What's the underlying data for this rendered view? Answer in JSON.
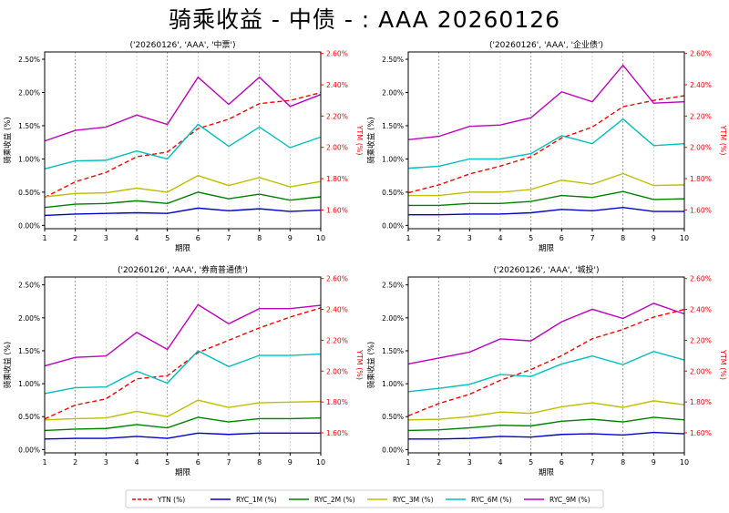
{
  "title": "骑乘收益 - 中债 - : AAA 20260126",
  "colors": {
    "YTN (%)": "#ff0000",
    "RYC_1M (%)": "#0000cc",
    "RYC_2M (%)": "#008000",
    "RYC_3M (%)": "#bfbf00",
    "RYC_6M (%)": "#00bfbf",
    "RYC_9M (%)": "#bf00bf"
  },
  "legend": [
    "YTN (%)",
    "RYC_1M (%)",
    "RYC_2M (%)",
    "RYC_3M (%)",
    "RYC_6M (%)",
    "RYC_9M (%)"
  ],
  "chart_data": [
    {
      "type": "line",
      "title": "('20260126', 'AAA', '中票')",
      "xlabel": "期限",
      "ylabel": "骑乘收益 (%)",
      "y2label": "YTM (%)",
      "x": [
        1,
        2,
        3,
        4,
        5,
        6,
        7,
        8,
        9,
        10
      ],
      "xticks": [
        "1",
        "2",
        "3",
        "4",
        "5",
        "6",
        "7",
        "8",
        "9",
        "10"
      ],
      "yticks": [
        "0.00%",
        "0.50%",
        "1.00%",
        "1.50%",
        "2.00%",
        "2.50%"
      ],
      "y2ticks": [
        "1.60%",
        "1.80%",
        "2.00%",
        "2.20%",
        "2.40%",
        "2.60%"
      ],
      "ylim": [
        -0.05,
        2.61
      ],
      "y2lim": [
        1.48,
        2.61
      ],
      "grid": "vertical",
      "series": [
        {
          "name": "YTN (%)",
          "axis": "right",
          "values": [
            1.68,
            1.78,
            1.84,
            1.94,
            1.97,
            2.12,
            2.18,
            2.28,
            2.3,
            2.35
          ]
        },
        {
          "name": "RYC_1M (%)",
          "values": [
            0.15,
            0.17,
            0.18,
            0.19,
            0.18,
            0.26,
            0.22,
            0.25,
            0.21,
            0.23
          ]
        },
        {
          "name": "RYC_2M (%)",
          "values": [
            0.27,
            0.32,
            0.33,
            0.37,
            0.33,
            0.5,
            0.4,
            0.47,
            0.38,
            0.43
          ]
        },
        {
          "name": "RYC_3M (%)",
          "values": [
            0.43,
            0.48,
            0.49,
            0.56,
            0.5,
            0.75,
            0.6,
            0.72,
            0.58,
            0.66
          ]
        },
        {
          "name": "RYC_6M (%)",
          "values": [
            0.85,
            0.97,
            0.98,
            1.12,
            1.0,
            1.52,
            1.19,
            1.48,
            1.17,
            1.33
          ]
        },
        {
          "name": "RYC_9M (%)",
          "values": [
            1.27,
            1.43,
            1.48,
            1.66,
            1.52,
            2.23,
            1.82,
            2.23,
            1.79,
            1.97
          ]
        }
      ]
    },
    {
      "type": "line",
      "title": "('20260126', 'AAA', '企业债')",
      "xlabel": "期限",
      "ylabel": "骑乘收益 (%)",
      "y2label": "YTM (%)",
      "x": [
        1,
        2,
        3,
        4,
        5,
        6,
        7,
        8,
        9,
        10
      ],
      "xticks": [
        "1",
        "2",
        "3",
        "4",
        "5",
        "6",
        "7",
        "8",
        "9",
        "10"
      ],
      "yticks": [
        "0.00%",
        "0.50%",
        "1.00%",
        "1.50%",
        "2.00%",
        "2.50%"
      ],
      "y2ticks": [
        "1.60%",
        "1.80%",
        "2.00%",
        "2.20%",
        "2.40%",
        "2.60%"
      ],
      "ylim": [
        -0.05,
        2.61
      ],
      "y2lim": [
        1.48,
        2.61
      ],
      "grid": "vertical",
      "series": [
        {
          "name": "YTN (%)",
          "axis": "right",
          "values": [
            1.71,
            1.76,
            1.83,
            1.88,
            1.94,
            2.06,
            2.13,
            2.26,
            2.3,
            2.33
          ]
        },
        {
          "name": "RYC_1M (%)",
          "values": [
            0.16,
            0.16,
            0.17,
            0.17,
            0.19,
            0.24,
            0.22,
            0.27,
            0.21,
            0.21
          ]
        },
        {
          "name": "RYC_2M (%)",
          "values": [
            0.3,
            0.3,
            0.33,
            0.33,
            0.36,
            0.45,
            0.42,
            0.51,
            0.39,
            0.4
          ]
        },
        {
          "name": "RYC_3M (%)",
          "values": [
            0.45,
            0.45,
            0.5,
            0.5,
            0.54,
            0.68,
            0.62,
            0.78,
            0.6,
            0.61
          ]
        },
        {
          "name": "RYC_6M (%)",
          "values": [
            0.86,
            0.89,
            1.0,
            1.0,
            1.08,
            1.35,
            1.23,
            1.6,
            1.2,
            1.23
          ]
        },
        {
          "name": "RYC_9M (%)",
          "values": [
            1.29,
            1.34,
            1.49,
            1.51,
            1.62,
            2.01,
            1.86,
            2.41,
            1.84,
            1.86
          ]
        }
      ]
    },
    {
      "type": "line",
      "title": "('20260126', 'AAA', '券商普通债')",
      "xlabel": "期限",
      "ylabel": "骑乘收益 (%)",
      "y2label": "YTM (%)",
      "x": [
        1,
        2,
        3,
        4,
        5,
        6,
        7,
        8,
        9,
        10
      ],
      "xticks": [
        "1",
        "2",
        "3",
        "4",
        "5",
        "6",
        "7",
        "8",
        "9",
        "10"
      ],
      "yticks": [
        "0.00%",
        "0.50%",
        "1.00%",
        "1.50%",
        "2.00%",
        "2.50%"
      ],
      "y2ticks": [
        "1.60%",
        "1.80%",
        "2.00%",
        "2.20%",
        "2.40%",
        "2.60%"
      ],
      "ylim": [
        -0.05,
        2.62
      ],
      "y2lim": [
        1.47,
        2.61
      ],
      "grid": "vertical",
      "series": [
        {
          "name": "YTN (%)",
          "axis": "right",
          "values": [
            1.69,
            1.78,
            1.82,
            1.95,
            1.97,
            2.12,
            2.2,
            2.28,
            2.35,
            2.41
          ]
        },
        {
          "name": "RYC_1M (%)",
          "values": [
            0.16,
            0.17,
            0.17,
            0.2,
            0.17,
            0.25,
            0.23,
            0.25,
            0.25,
            0.25
          ]
        },
        {
          "name": "RYC_2M (%)",
          "values": [
            0.29,
            0.31,
            0.32,
            0.38,
            0.33,
            0.49,
            0.42,
            0.47,
            0.47,
            0.48
          ]
        },
        {
          "name": "RYC_3M (%)",
          "values": [
            0.45,
            0.47,
            0.48,
            0.58,
            0.5,
            0.75,
            0.64,
            0.71,
            0.72,
            0.73
          ]
        },
        {
          "name": "RYC_6M (%)",
          "values": [
            0.85,
            0.94,
            0.95,
            1.19,
            1.01,
            1.5,
            1.26,
            1.43,
            1.43,
            1.45
          ]
        },
        {
          "name": "RYC_9M (%)",
          "values": [
            1.27,
            1.4,
            1.42,
            1.78,
            1.52,
            2.2,
            1.91,
            2.14,
            2.14,
            2.19
          ]
        }
      ]
    },
    {
      "type": "line",
      "title": "('20260126', 'AAA', '城投')",
      "xlabel": "期限",
      "ylabel": "骑乘收益 (%)",
      "y2label": "YTM (%)",
      "x": [
        1,
        2,
        3,
        4,
        5,
        6,
        7,
        8,
        9,
        10
      ],
      "xticks": [
        "1",
        "2",
        "3",
        "4",
        "5",
        "6",
        "7",
        "8",
        "9",
        "10"
      ],
      "yticks": [
        "0.00%",
        "0.50%",
        "1.00%",
        "1.50%",
        "2.00%",
        "2.50%"
      ],
      "y2ticks": [
        "1.60%",
        "1.80%",
        "2.00%",
        "2.20%",
        "2.40%",
        "2.60%"
      ],
      "ylim": [
        -0.05,
        2.62
      ],
      "y2lim": [
        1.47,
        2.61
      ],
      "grid": "vertical",
      "series": [
        {
          "name": "YTN (%)",
          "axis": "right",
          "values": [
            1.71,
            1.79,
            1.85,
            1.94,
            2.01,
            2.1,
            2.21,
            2.27,
            2.35,
            2.4
          ]
        },
        {
          "name": "RYC_1M (%)",
          "values": [
            0.16,
            0.16,
            0.17,
            0.2,
            0.19,
            0.23,
            0.24,
            0.22,
            0.26,
            0.24
          ]
        },
        {
          "name": "RYC_2M (%)",
          "values": [
            0.29,
            0.3,
            0.33,
            0.37,
            0.36,
            0.43,
            0.46,
            0.42,
            0.49,
            0.45
          ]
        },
        {
          "name": "RYC_3M (%)",
          "values": [
            0.45,
            0.46,
            0.5,
            0.57,
            0.55,
            0.65,
            0.71,
            0.64,
            0.74,
            0.68
          ]
        },
        {
          "name": "RYC_6M (%)",
          "values": [
            0.88,
            0.93,
            0.99,
            1.14,
            1.11,
            1.3,
            1.42,
            1.29,
            1.49,
            1.36
          ]
        },
        {
          "name": "RYC_9M (%)",
          "values": [
            1.3,
            1.39,
            1.48,
            1.68,
            1.65,
            1.94,
            2.13,
            1.99,
            2.22,
            2.06
          ]
        }
      ]
    }
  ]
}
